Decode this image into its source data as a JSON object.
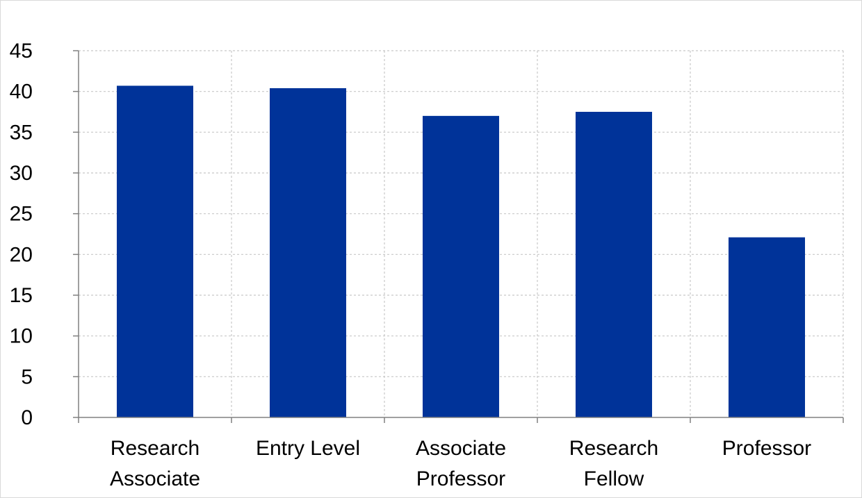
{
  "chart_data": {
    "type": "bar",
    "categories": [
      [
        "Research",
        "Associate"
      ],
      [
        "Entry Level"
      ],
      [
        "Associate",
        "Professor"
      ],
      [
        "Research",
        "Fellow"
      ],
      [
        "Professor"
      ]
    ],
    "values": [
      40.7,
      40.4,
      37.0,
      37.5,
      22.1
    ],
    "title": "",
    "xlabel": "",
    "ylabel": "",
    "ylim": [
      0,
      45
    ],
    "yticks": [
      0,
      5,
      10,
      15,
      20,
      25,
      30,
      35,
      40,
      45
    ],
    "grid": true,
    "legend": "none",
    "bar_color": "#003399"
  }
}
